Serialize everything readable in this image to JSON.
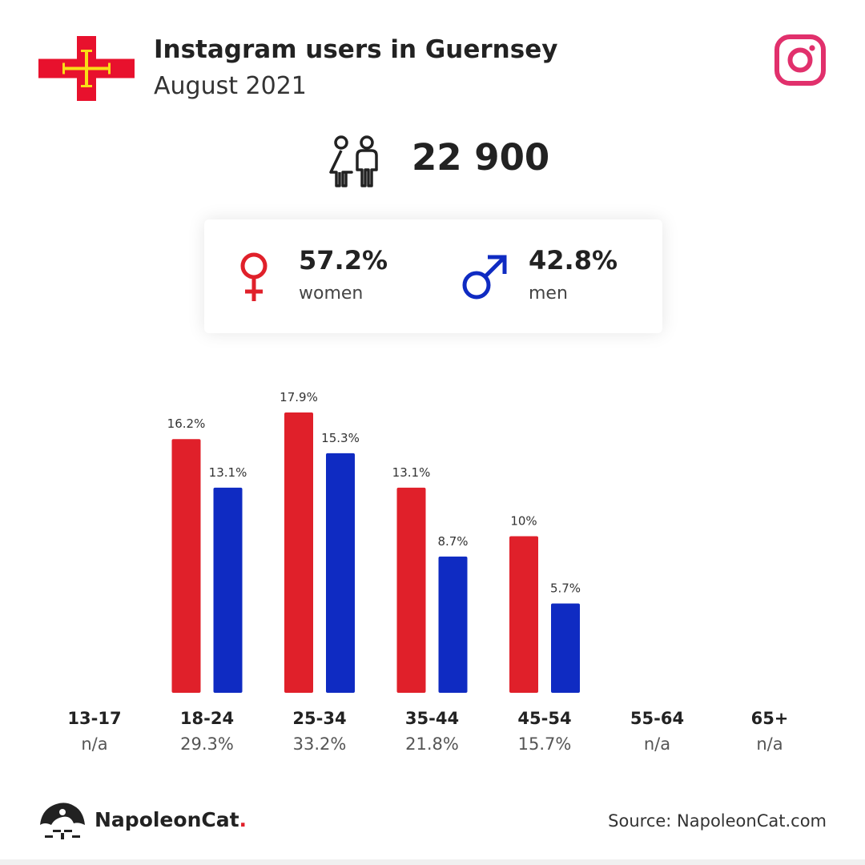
{
  "header": {
    "title": "Instagram users in Guernsey",
    "subtitle": "August 2021"
  },
  "total_users": "22 900",
  "gender": {
    "women": {
      "pct": "57.2%",
      "label": "women",
      "color": "#e0202a"
    },
    "men": {
      "pct": "42.8%",
      "label": "men",
      "color": "#0f2bc2"
    }
  },
  "chart_data": {
    "type": "bar",
    "categories": [
      "13-17",
      "18-24",
      "25-34",
      "35-44",
      "45-54",
      "55-64",
      "65+"
    ],
    "category_totals": [
      "n/a",
      "29.3%",
      "33.2%",
      "21.8%",
      "15.7%",
      "n/a",
      "n/a"
    ],
    "series": [
      {
        "color": "#e0202a",
        "values": [
          null,
          16.2,
          17.9,
          13.1,
          10,
          null,
          null
        ],
        "labels": [
          "",
          "16.2%",
          "17.9%",
          "13.1%",
          "10%",
          "",
          ""
        ]
      },
      {
        "color": "#0f2bc2",
        "values": [
          null,
          13.1,
          15.3,
          8.7,
          5.7,
          null,
          null
        ],
        "labels": [
          "",
          "13.1%",
          "15.3%",
          "8.7%",
          "5.7%",
          "",
          ""
        ]
      }
    ],
    "ylim": [
      0,
      17.9
    ],
    "grid": false
  },
  "footer": {
    "brand_name": "NapoleonCat",
    "brand_dot": ".",
    "source": "Source: NapoleonCat.com"
  },
  "icons": {
    "flag": "guernsey-flag-icon",
    "instagram": "instagram-icon",
    "users": "users-icon",
    "female": "female-symbol-icon",
    "male": "male-symbol-icon",
    "brand": "napoleoncat-logo-icon"
  }
}
